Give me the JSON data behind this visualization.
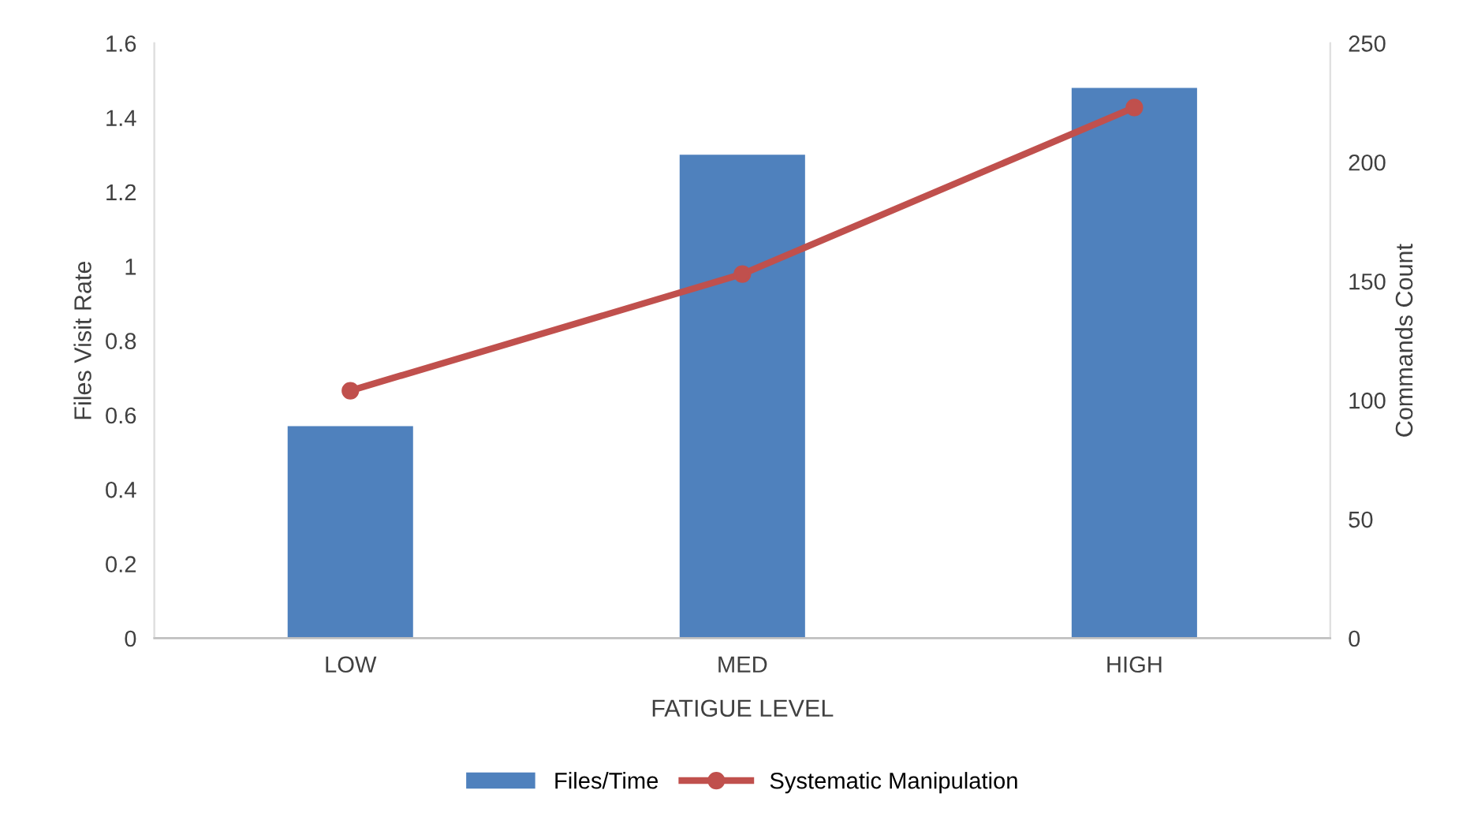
{
  "chart_data": {
    "type": "bar",
    "xlabel": "FATIGUE LEVEL",
    "ylabel": "Files Visit Rate",
    "y2label": "Commands Count",
    "categories": [
      "LOW",
      "MED",
      "HIGH"
    ],
    "series": [
      {
        "name": "Files/Time",
        "color": "#4f81bd",
        "values": [
          0.57,
          1.3,
          1.48
        ]
      },
      {
        "name": "Systematic Manipulation",
        "type": "line",
        "axis": "y2",
        "color": "#c0504d",
        "marker": "circle",
        "values": [
          104,
          153,
          223
        ]
      }
    ],
    "ylim": [
      0,
      1.6
    ],
    "yticks": [
      0,
      0.2,
      0.4,
      0.6,
      0.8,
      1,
      1.2,
      1.4,
      1.6
    ],
    "y2lim": [
      0,
      250
    ],
    "y2ticks": [
      0,
      50,
      100,
      150,
      200,
      250
    ],
    "grid": false,
    "legend": "bottom"
  }
}
